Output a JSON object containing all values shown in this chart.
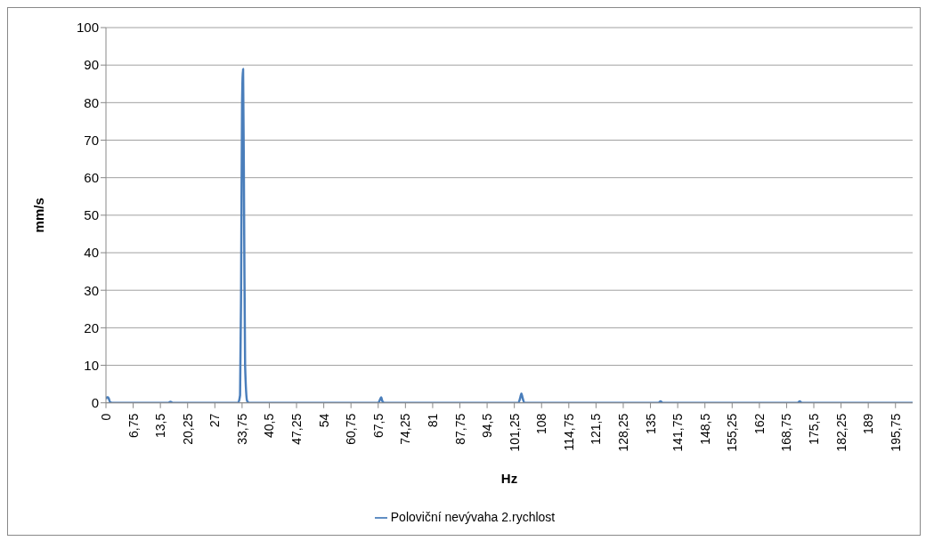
{
  "chart_data": {
    "type": "line",
    "xlabel": "Hz",
    "ylabel": "mm/s",
    "legend": "bottom",
    "grid": "y",
    "marker": "none",
    "line_style": "solid",
    "xlim": [
      0,
      200
    ],
    "ylim": [
      0,
      100
    ],
    "xticks": [
      0,
      {
        "value": 6.75,
        "label": "6,75"
      },
      {
        "value": 13.5,
        "label": "13,5"
      },
      {
        "value": 20.25,
        "label": "20,25"
      },
      27,
      {
        "value": 33.75,
        "label": "33,75"
      },
      {
        "value": 40.5,
        "label": "40,5"
      },
      {
        "value": 47.25,
        "label": "47,25"
      },
      54,
      {
        "value": 60.75,
        "label": "60,75"
      },
      {
        "value": 67.5,
        "label": "67,5"
      },
      {
        "value": 74.25,
        "label": "74,25"
      },
      81,
      {
        "value": 87.75,
        "label": "87,75"
      },
      {
        "value": 94.5,
        "label": "94,5"
      },
      {
        "value": 101.25,
        "label": "101,25"
      },
      108,
      {
        "value": 114.75,
        "label": "114,75"
      },
      {
        "value": 121.5,
        "label": "121,5"
      },
      {
        "value": 128.25,
        "label": "128,25"
      },
      135,
      {
        "value": 141.75,
        "label": "141,75"
      },
      {
        "value": 148.5,
        "label": "148,5"
      },
      {
        "value": 155.25,
        "label": "155,25"
      },
      162,
      {
        "value": 168.75,
        "label": "168,75"
      },
      {
        "value": 175.5,
        "label": "175,5"
      },
      {
        "value": 182.25,
        "label": "182,25"
      },
      189,
      {
        "value": 195.75,
        "label": "195,75"
      }
    ],
    "yticks": [
      0,
      10,
      20,
      30,
      40,
      50,
      60,
      70,
      80,
      90,
      100
    ],
    "x": [
      0,
      0.25,
      0.5,
      0.75,
      1,
      1.5,
      2,
      15.5,
      16,
      16.5,
      32.75,
      33.25,
      33.5,
      33.75,
      34,
      34.25,
      34.5,
      35,
      35.5,
      67.5,
      68,
      68.25,
      68.5,
      69,
      102.25,
      102.75,
      103,
      103.25,
      103.75,
      137,
      137.5,
      138,
      171.5,
      172,
      172.5,
      200
    ],
    "series": [
      {
        "name": "Poloviční nevývaha 2.rychlost",
        "color": "#4a7ebb",
        "values": [
          1,
          1.5,
          1.5,
          1,
          0.2,
          0,
          0,
          0,
          0.3,
          0,
          0,
          2,
          30,
          80,
          89,
          50,
          10,
          0.5,
          0,
          0,
          1,
          1.5,
          0.5,
          0,
          0,
          1.5,
          2.5,
          1.5,
          0,
          0,
          0.4,
          0,
          0,
          0.4,
          0,
          0
        ]
      }
    ]
  }
}
